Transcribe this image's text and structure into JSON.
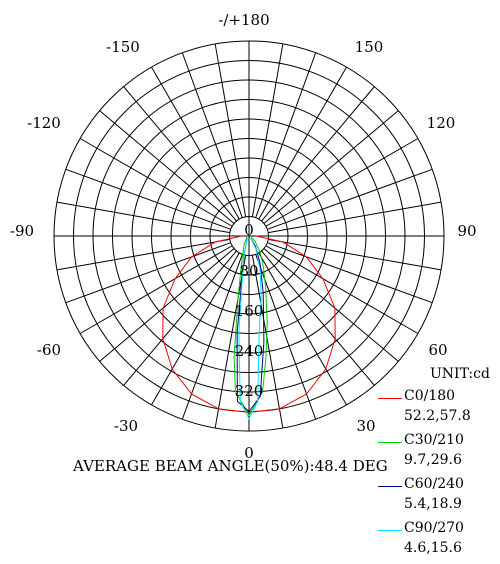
{
  "chart_data": {
    "type": "polar",
    "unit_label": "UNIT:cd",
    "angle_labels": {
      "top": "-/+180",
      "left_upper": "-150",
      "right_upper": "150",
      "left_120": "-120",
      "right_120": "120",
      "left_90": "-90",
      "right_90": "90",
      "left_60": "-60",
      "right_60": "60",
      "left_30": "-30",
      "right_30": "30",
      "bottom": "0"
    },
    "radial_labels": [
      "0",
      "80",
      "160",
      "240",
      "320"
    ],
    "radial_ticks": [
      0,
      80,
      160,
      240,
      320
    ],
    "r_max": 400,
    "angle_step": 10,
    "ring_step": 40,
    "footer": "AVERAGE BEAM ANGLE(50%):48.4 DEG",
    "series": [
      {
        "name": "C0/180",
        "values_label": "52.2,57.8",
        "color": "#ff0000",
        "points": [
          [
            -90,
            15
          ],
          [
            -80,
            70
          ],
          [
            -70,
            125
          ],
          [
            -60,
            175
          ],
          [
            -50,
            230
          ],
          [
            -40,
            275
          ],
          [
            -30,
            315
          ],
          [
            -20,
            345
          ],
          [
            -10,
            360
          ],
          [
            0,
            362
          ],
          [
            10,
            360
          ],
          [
            20,
            345
          ],
          [
            30,
            315
          ],
          [
            40,
            275
          ],
          [
            50,
            230
          ],
          [
            60,
            175
          ],
          [
            70,
            125
          ],
          [
            80,
            70
          ],
          [
            90,
            15
          ]
        ]
      },
      {
        "name": "C30/210",
        "values_label": "9.7,29.6",
        "color": "#00cc00",
        "points": [
          [
            -60,
            5
          ],
          [
            -30,
            20
          ],
          [
            -15,
            60
          ],
          [
            -10,
            130
          ],
          [
            -7,
            250
          ],
          [
            -5,
            320
          ],
          [
            0,
            368
          ],
          [
            5,
            320
          ],
          [
            8,
            250
          ],
          [
            12,
            180
          ],
          [
            18,
            110
          ],
          [
            25,
            70
          ],
          [
            35,
            40
          ],
          [
            50,
            15
          ],
          [
            60,
            5
          ]
        ]
      },
      {
        "name": "C60/240",
        "values_label": "5.4,18.9",
        "color": "#000099",
        "points": [
          [
            -40,
            5
          ],
          [
            -15,
            40
          ],
          [
            -7,
            200
          ],
          [
            -4,
            340
          ],
          [
            0,
            360
          ],
          [
            4,
            330
          ],
          [
            8,
            220
          ],
          [
            14,
            120
          ],
          [
            22,
            60
          ],
          [
            32,
            25
          ],
          [
            40,
            5
          ]
        ]
      },
      {
        "name": "C90/270",
        "values_label": "4.6,15.6",
        "color": "#00e5ff",
        "points": [
          [
            -40,
            5
          ],
          [
            -14,
            45
          ],
          [
            -6,
            200
          ],
          [
            -3,
            340
          ],
          [
            0,
            375
          ],
          [
            3,
            340
          ],
          [
            6,
            200
          ],
          [
            11,
            130
          ],
          [
            18,
            75
          ],
          [
            28,
            30
          ],
          [
            40,
            5
          ]
        ]
      }
    ]
  }
}
